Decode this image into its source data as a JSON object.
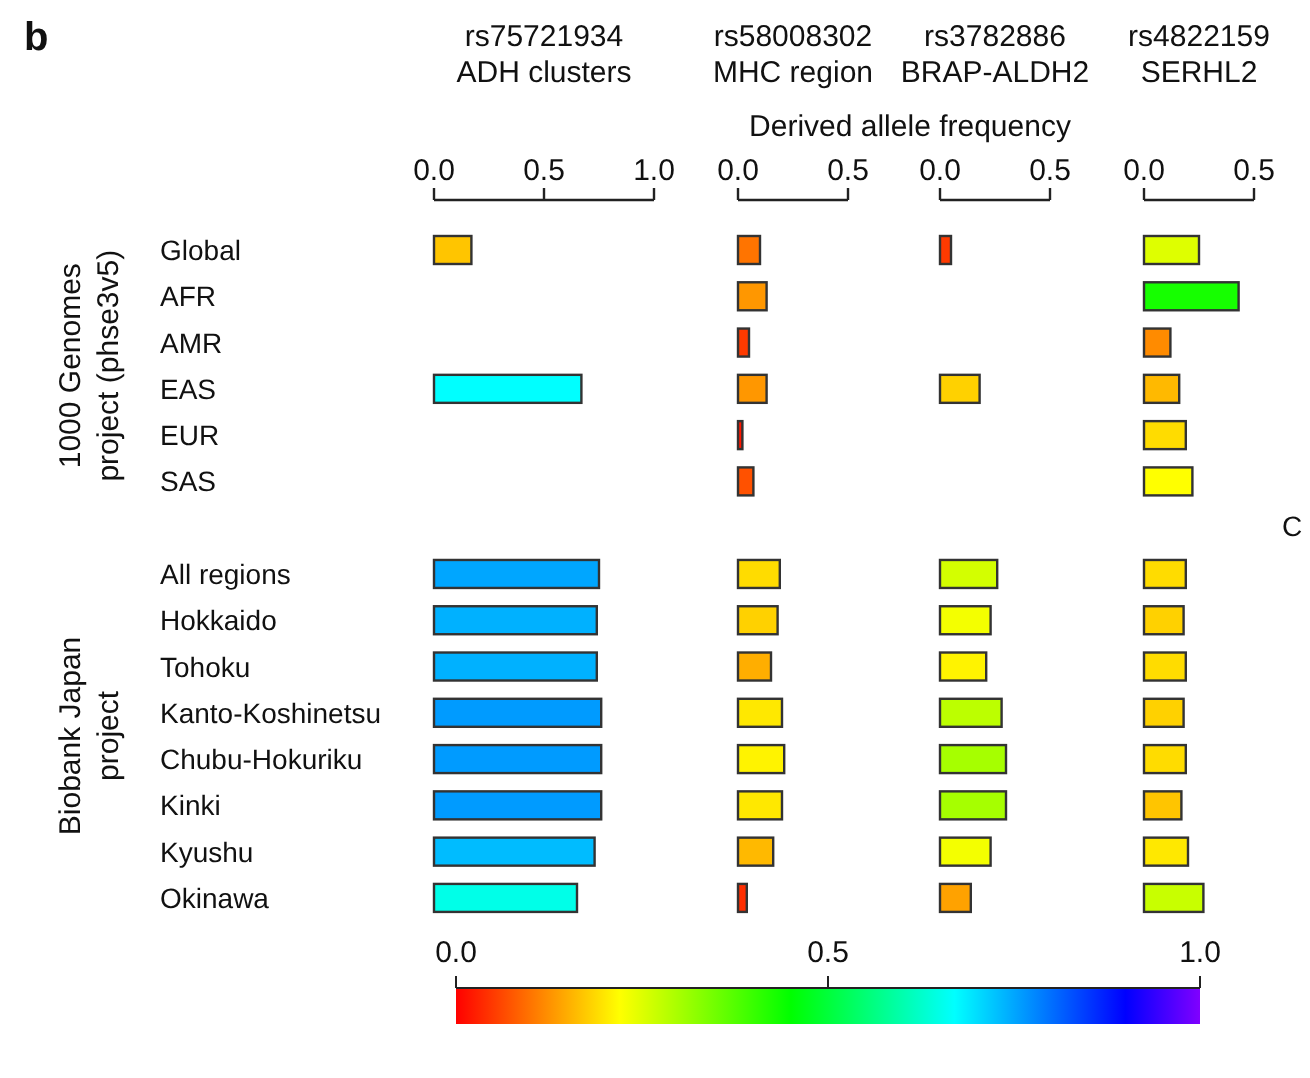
{
  "chart_data": [
    {
      "type": "bar",
      "orientation": "horizontal",
      "title": "rs75721934\nADH clusters",
      "annotations": [
        "b",
        "1000 Genomes\nproject (phse3v5)",
        "Biobank Japan\nproject"
      ],
      "categories": [
        "Global",
        "AFR",
        "AMR",
        "EAS",
        "EUR",
        "SAS",
        null,
        "All regions",
        "Hokkaido",
        "Tohoku",
        "Kanto-Koshinetsu",
        "Chubu-Hokuriku",
        "Kinki",
        "Kyushu",
        "Okinawa"
      ],
      "values": [
        0.17,
        0,
        0,
        0.67,
        0,
        0,
        null,
        0.75,
        0.74,
        0.74,
        0.76,
        0.76,
        0.76,
        0.73,
        0.65
      ],
      "xlim": [
        0,
        1
      ],
      "xticks": [
        {
          "value": 0,
          "label": "0.0"
        },
        {
          "value": 0.5,
          "label": "0.5"
        },
        {
          "value": 1,
          "label": "1.0"
        }
      ]
    },
    {
      "type": "bar",
      "orientation": "horizontal",
      "title": "rs58008302\nMHC region",
      "xlabel": "Derived allele frequency",
      "values": [
        0.1,
        0.13,
        0.05,
        0.13,
        0.02,
        0.07,
        null,
        0.19,
        0.18,
        0.15,
        0.2,
        0.21,
        0.2,
        0.16,
        0.04
      ],
      "xlim": [
        0,
        0.5
      ],
      "xticks": [
        {
          "value": 0,
          "label": "0.0"
        },
        {
          "value": 0.5,
          "label": "0.5"
        }
      ],
      "tick_labels": "x"
    },
    {
      "type": "bar",
      "orientation": "horizontal",
      "title": "rs3782886\nBRAP-ALDH2",
      "values": [
        0.05,
        0,
        0,
        0.18,
        0,
        0,
        null,
        0.26,
        0.23,
        0.21,
        0.28,
        0.3,
        0.3,
        0.23,
        0.14
      ],
      "xlim": [
        0,
        0.5
      ],
      "xticks": [
        {
          "value": 0,
          "label": "0.0"
        },
        {
          "value": 0.5,
          "label": "0.5"
        }
      ],
      "tick_labels": "x"
    },
    {
      "type": "bar",
      "orientation": "horizontal",
      "title": "rs4822159\nSERHL2",
      "annotations": [
        "C"
      ],
      "values": [
        0.25,
        0.43,
        0.12,
        0.16,
        0.19,
        0.22,
        null,
        0.19,
        0.18,
        0.19,
        0.18,
        0.19,
        0.17,
        0.2,
        0.27
      ],
      "xlim": [
        0,
        0.5
      ],
      "xticks": [
        {
          "value": 0,
          "label": "0.0"
        },
        {
          "value": 0.5,
          "label": "0.5"
        }
      ],
      "tick_labels": "x",
      "clim": [
        0,
        1
      ],
      "cticks": [
        {
          "value": 0,
          "label": "0.0"
        },
        {
          "value": 0.5,
          "label": "0.5"
        },
        {
          "value": 1,
          "label": "1.0"
        }
      ]
    }
  ]
}
